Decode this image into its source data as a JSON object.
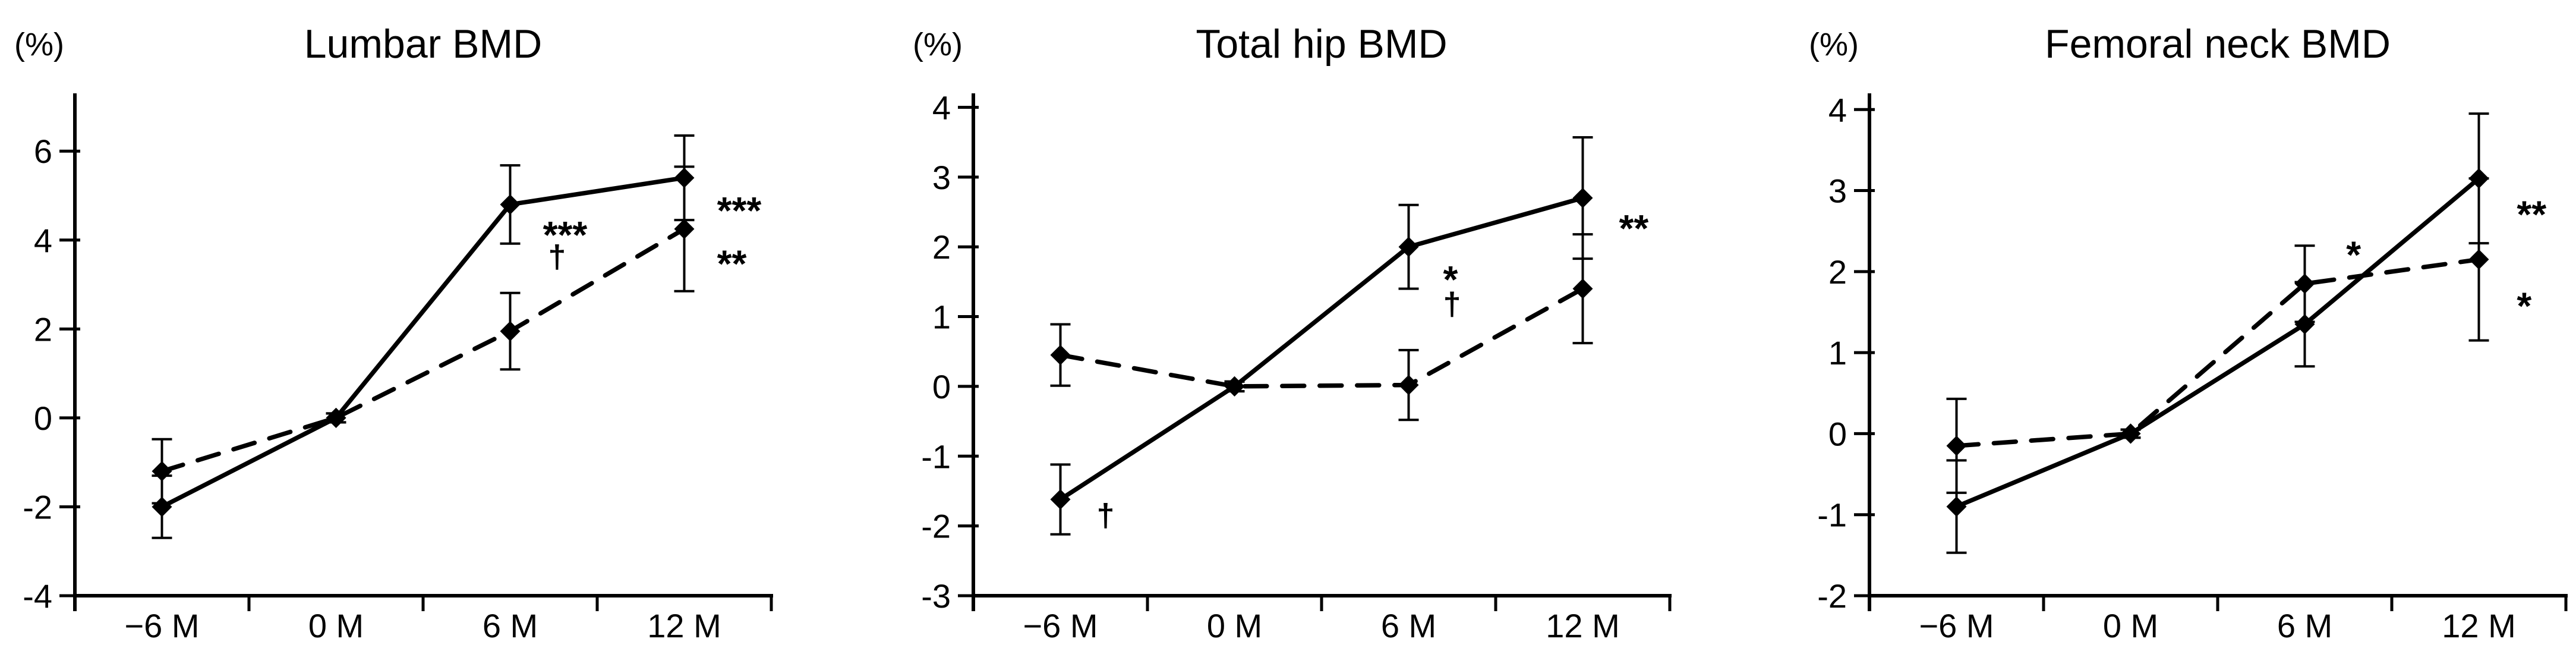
{
  "figure": {
    "background_color": "#ffffff",
    "ink_color": "#000000"
  },
  "chart_data": [
    {
      "type": "line",
      "title": "Lumbar BMD",
      "y_unit_label": "(%)",
      "xlabel": "",
      "ylabel": "(%)",
      "categories": [
        "−6 M",
        "0 M",
        "6 M",
        "12 M"
      ],
      "ylim": [
        -4,
        7.3
      ],
      "y_tick_labels": [
        "6",
        "4",
        "2",
        "0",
        "-2",
        "-4"
      ],
      "grid": false,
      "legend": "none",
      "series": [
        {
          "name": "solid-line-series",
          "line_style": "solid",
          "values": [
            -2.0,
            0,
            4.8,
            5.4
          ],
          "errors": [
            0.7,
            0.1,
            0.88,
            0.95
          ]
        },
        {
          "name": "dashed-line-series",
          "line_style": "dashed",
          "values": [
            -1.2,
            0,
            1.95,
            4.25
          ],
          "errors": [
            0.72,
            0.1,
            0.86,
            1.4
          ]
        }
      ],
      "annotations": [
        {
          "text": "***",
          "category_index": 2,
          "x_offset": 0.13,
          "y": 4.25,
          "style": "stars"
        },
        {
          "text": "†",
          "category_index": 2,
          "x_offset": 0.16,
          "y": 3.62,
          "style": "dagger"
        },
        {
          "text": "***",
          "category_index": 3,
          "x_offset": 0.13,
          "y": 4.8,
          "style": "stars"
        },
        {
          "text": "**",
          "category_index": 3,
          "x_offset": 0.13,
          "y": 3.6,
          "style": "stars"
        }
      ]
    },
    {
      "type": "line",
      "title": "Total hip BMD",
      "y_unit_label": "(%)",
      "xlabel": "",
      "ylabel": "(%)",
      "categories": [
        "−6 M",
        "0 M",
        "6 M",
        "12 M"
      ],
      "ylim": [
        -3,
        4.2
      ],
      "y_tick_labels": [
        "4",
        "3",
        "2",
        "1",
        "0",
        "-1",
        "-2",
        "-3"
      ],
      "grid": false,
      "legend": "none",
      "series": [
        {
          "name": "solid-line-series",
          "line_style": "solid",
          "values": [
            -1.62,
            0,
            2.0,
            2.7
          ],
          "errors": [
            0.5,
            0.07,
            0.6,
            0.87
          ]
        },
        {
          "name": "dashed-line-series",
          "line_style": "dashed",
          "values": [
            0.45,
            0,
            0.02,
            1.4
          ],
          "errors": [
            0.44,
            0.07,
            0.5,
            0.78
          ]
        }
      ],
      "annotations": [
        {
          "text": "†",
          "category_index": 0,
          "x_offset": 0.15,
          "y": -1.85,
          "style": "dagger"
        },
        {
          "text": "*",
          "category_index": 2,
          "x_offset": 0.14,
          "y": 1.62,
          "style": "stars"
        },
        {
          "text": "†",
          "category_index": 2,
          "x_offset": 0.14,
          "y": 1.18,
          "style": "dagger"
        },
        {
          "text": "**",
          "category_index": 3,
          "x_offset": 0.15,
          "y": 2.35,
          "style": "stars"
        }
      ]
    },
    {
      "type": "line",
      "title": "Femoral neck BMD",
      "y_unit_label": "(%)",
      "xlabel": "",
      "ylabel": "(%)",
      "categories": [
        "−6 M",
        "0 M",
        "6 M",
        "12 M"
      ],
      "ylim": [
        -2,
        4.2
      ],
      "y_tick_labels": [
        "4",
        "3",
        "2",
        "1",
        "0",
        "-1",
        "-2"
      ],
      "grid": false,
      "legend": "none",
      "series": [
        {
          "name": "solid-line-series",
          "line_style": "solid",
          "values": [
            -0.9,
            0,
            1.35,
            3.15
          ],
          "errors": [
            0.57,
            0.05,
            0.52,
            0.8
          ]
        },
        {
          "name": "dashed-line-series",
          "line_style": "dashed",
          "values": [
            -0.15,
            0,
            1.85,
            2.15
          ],
          "errors": [
            0.58,
            0.05,
            0.47,
            1.0
          ]
        }
      ],
      "annotations": [
        {
          "text": "*",
          "category_index": 2,
          "x_offset": 0.18,
          "y": 2.28,
          "style": "stars"
        },
        {
          "text": "**",
          "category_index": 3,
          "x_offset": 0.16,
          "y": 2.78,
          "style": "stars"
        },
        {
          "text": "*",
          "category_index": 3,
          "x_offset": 0.16,
          "y": 1.65,
          "style": "stars"
        }
      ]
    }
  ]
}
